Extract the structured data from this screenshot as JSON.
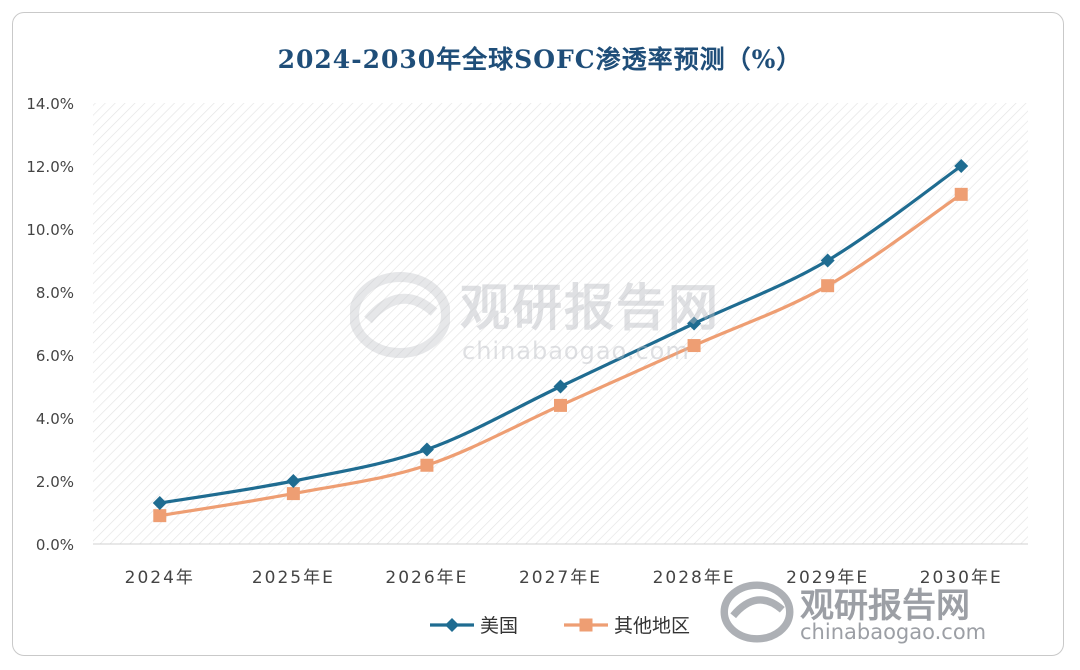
{
  "chart_data": {
    "type": "line",
    "title": "2024-2030年全球SOFC渗透率预测（%）",
    "categories": [
      "2024年",
      "2025年E",
      "2026年E",
      "2027年E",
      "2028年E",
      "2029年E",
      "2030年E"
    ],
    "series": [
      {
        "name": "美国",
        "values": [
          1.3,
          2.0,
          3.0,
          5.0,
          7.0,
          9.0,
          12.0
        ],
        "color": "#1f6c91",
        "marker": "diamond"
      },
      {
        "name": "其他地区",
        "values": [
          0.9,
          1.6,
          2.5,
          4.4,
          6.3,
          8.2,
          11.1
        ],
        "color": "#ee9e73",
        "marker": "square"
      }
    ],
    "yticks": [
      "0.0%",
      "2.0%",
      "4.0%",
      "6.0%",
      "8.0%",
      "10.0%",
      "12.0%",
      "14.0%"
    ],
    "ylim": [
      0,
      14
    ],
    "grid": false,
    "legend_position": "bottom",
    "background": "diagonal-hatch"
  },
  "watermark": {
    "cn": "观研报告网",
    "en": "chinabaogao.com"
  }
}
